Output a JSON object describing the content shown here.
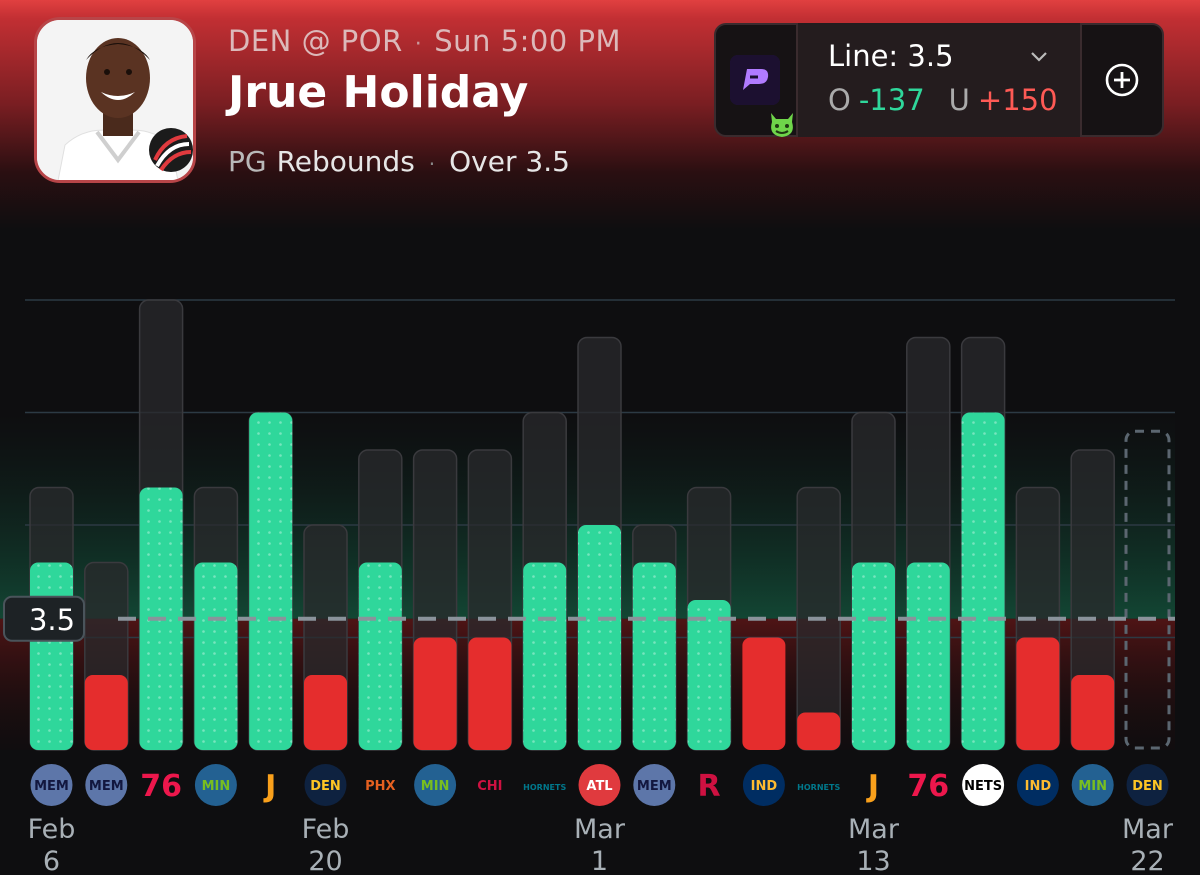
{
  "header": {
    "matchup": "DEN @ POR",
    "game_time": "Sun 5:00 PM",
    "player_name": "Jrue Holiday",
    "position": "PG",
    "stat": "Rebounds",
    "pick": "Over 3.5"
  },
  "line_selector": {
    "line_label": "Line: 3.5",
    "over_label": "O",
    "over_odds": "-137",
    "under_label": "U",
    "under_odds": "+150",
    "book_icon": "prizepicks-logo",
    "badge_icon": "green-devil-icon",
    "dropdown_icon": "chevron-down-icon",
    "add_icon": "plus-circle-icon"
  },
  "colors": {
    "over": "#2fd79b",
    "under": "#e52d2d",
    "accent": "#d63a3d"
  },
  "chart_data": {
    "type": "bar",
    "line": 3.5,
    "line_label": "3.5",
    "ylim": [
      0,
      12
    ],
    "grid_values": [
      3,
      6,
      9,
      12
    ],
    "categories": [
      "MEM",
      "MEM",
      "PHI",
      "MIN",
      "UTA",
      "DEN",
      "PHX",
      "MIN",
      "CHI",
      "CHA",
      "ATL",
      "MEM",
      "HOU",
      "IND",
      "CHA",
      "UTA",
      "PHI",
      "BKN",
      "IND",
      "MIN",
      "DEN"
    ],
    "values": [
      5,
      2,
      7,
      5,
      9,
      2,
      5,
      3,
      3,
      5,
      6,
      5,
      4,
      3,
      1,
      5,
      5,
      9,
      3,
      2,
      null
    ],
    "minutes_values": [
      7,
      5,
      12,
      7,
      9,
      6,
      8,
      8,
      8,
      9,
      11,
      6,
      7,
      0,
      7,
      9,
      11,
      11,
      7,
      8,
      10
    ],
    "date_labels": [
      {
        "index": 0,
        "month": "Feb",
        "day": "6"
      },
      {
        "index": 5,
        "month": "Feb",
        "day": "20"
      },
      {
        "index": 10,
        "month": "Mar",
        "day": "1"
      },
      {
        "index": 15,
        "month": "Mar",
        "day": "13"
      },
      {
        "index": 20,
        "month": "Mar",
        "day": "22"
      }
    ]
  }
}
